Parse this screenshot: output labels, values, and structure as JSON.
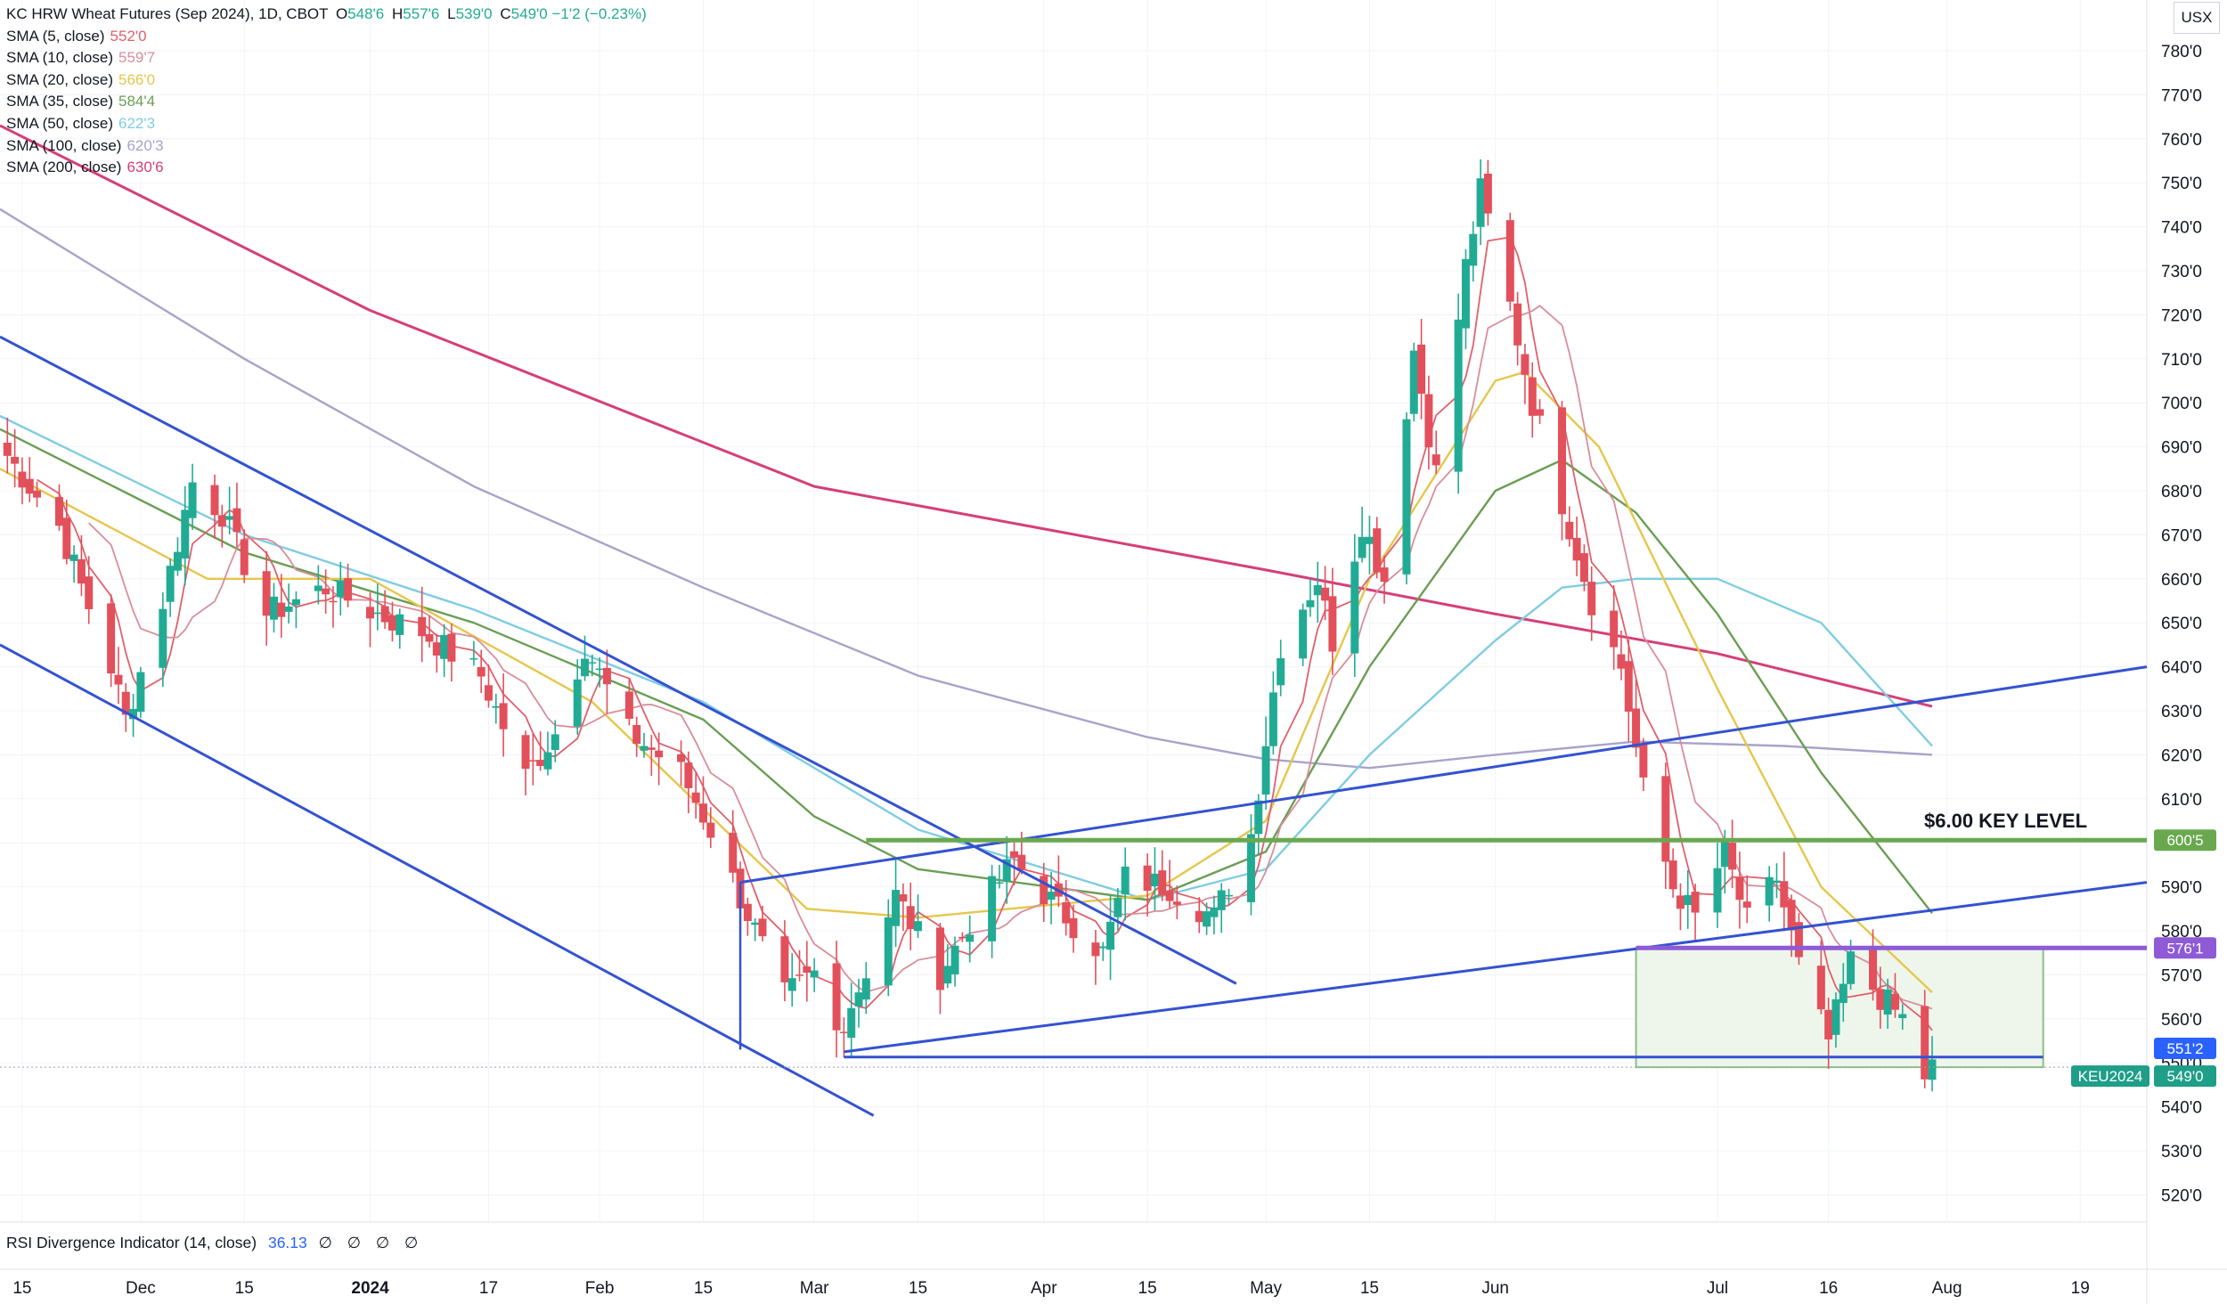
{
  "legend": {
    "title": "KC HRW Wheat Futures (Sep 2024), 1D, CBOT",
    "open_label": "O",
    "open": "548'6",
    "high_label": "H",
    "high": "557'6",
    "low_label": "L",
    "low": "539'0",
    "close_label": "C",
    "close": "549'0",
    "change": "−1'2 (−0.23%)",
    "sma": [
      {
        "label": "SMA (5, close)",
        "value": "552'0",
        "color": "#e0606b"
      },
      {
        "label": "SMA (10, close)",
        "value": "559'7",
        "color": "#d98e9a"
      },
      {
        "label": "SMA (20, close)",
        "value": "566'0",
        "color": "#e6c64c"
      },
      {
        "label": "SMA (35, close)",
        "value": "584'4",
        "color": "#6a9e55"
      },
      {
        "label": "SMA (50, close)",
        "value": "622'3",
        "color": "#7fcde0"
      },
      {
        "label": "SMA (100, close)",
        "value": "620'3",
        "color": "#a9a3c9"
      },
      {
        "label": "SMA (200, close)",
        "value": "630'6",
        "color": "#d63f78"
      }
    ]
  },
  "currency": "USX",
  "rsi": {
    "label": "RSI Divergence Indicator (14, close)",
    "value": "36.13",
    "icons": "∅ ∅ ∅ ∅"
  },
  "annotation": "$6.00 KEY LEVEL",
  "price_tags": [
    {
      "text": "600'5",
      "color": "#6aa84f",
      "price": 600.6
    },
    {
      "text": "576'1",
      "color": "#8e5ad6",
      "price": 576.1
    },
    {
      "text": "551'2",
      "color": "#2962ff",
      "price": 551.25
    },
    {
      "text": "549'0",
      "color": "#1f9e88",
      "price": 549.0
    }
  ],
  "symbol_tag": "KEU2024",
  "colors": {
    "up": "#22ab94",
    "down": "#e2505b",
    "trendline": "#3452d1",
    "key_level": "#6aa84f",
    "support": "#8e5ad6",
    "box_fill": "#eef6ec"
  },
  "chart_data": {
    "type": "candlestick",
    "title": "KC HRW Wheat Futures (Sep 2024), 1D, CBOT",
    "y_unit": "USX",
    "ylim": [
      515,
      785
    ],
    "y_ticks": [
      "780'0",
      "770'0",
      "760'0",
      "750'0",
      "740'0",
      "730'0",
      "720'0",
      "710'0",
      "700'0",
      "690'0",
      "680'0",
      "670'0",
      "660'0",
      "650'0",
      "640'0",
      "630'0",
      "620'0",
      "610'0",
      "600'0",
      "590'0",
      "580'0",
      "570'0",
      "560'0",
      "550'0",
      "540'0",
      "530'0",
      "520'0"
    ],
    "y_tick_values": [
      780,
      770,
      760,
      750,
      740,
      730,
      720,
      710,
      700,
      690,
      680,
      670,
      660,
      650,
      640,
      630,
      620,
      610,
      600,
      590,
      580,
      570,
      560,
      550,
      540,
      530,
      520
    ],
    "x_range": [
      "2023-11-12",
      "2024-08-28"
    ],
    "x_ticks": [
      {
        "date": "2023-11-15",
        "label": "15"
      },
      {
        "date": "2023-12-01",
        "label": "Dec"
      },
      {
        "date": "2023-12-15",
        "label": "15"
      },
      {
        "date": "2024-01-01",
        "label": "2024"
      },
      {
        "date": "2024-01-17",
        "label": "17"
      },
      {
        "date": "2024-02-01",
        "label": "Feb"
      },
      {
        "date": "2024-02-15",
        "label": "15"
      },
      {
        "date": "2024-03-01",
        "label": "Mar"
      },
      {
        "date": "2024-03-15",
        "label": "15"
      },
      {
        "date": "2024-04-01",
        "label": "Apr"
      },
      {
        "date": "2024-04-15",
        "label": "15"
      },
      {
        "date": "2024-05-01",
        "label": "May"
      },
      {
        "date": "2024-05-15",
        "label": "15"
      },
      {
        "date": "2024-06-01",
        "label": "Jun"
      },
      {
        "date": "2024-07-01",
        "label": "Jul"
      },
      {
        "date": "2024-07-16",
        "label": "16"
      },
      {
        "date": "2024-08-01",
        "label": "Aug"
      },
      {
        "date": "2024-08-19",
        "label": "19"
      }
    ],
    "close_anchors": [
      [
        "2023-11-13",
        688
      ],
      [
        "2023-11-20",
        672
      ],
      [
        "2023-11-27",
        640
      ],
      [
        "2023-11-29",
        628
      ],
      [
        "2023-12-04",
        655
      ],
      [
        "2023-12-08",
        682
      ],
      [
        "2023-12-12",
        675
      ],
      [
        "2023-12-18",
        652
      ],
      [
        "2023-12-26",
        658
      ],
      [
        "2024-01-02",
        652
      ],
      [
        "2024-01-08",
        648
      ],
      [
        "2024-01-16",
        638
      ],
      [
        "2024-01-22",
        615
      ],
      [
        "2024-01-26",
        625
      ],
      [
        "2024-01-30",
        645
      ],
      [
        "2024-02-05",
        625
      ],
      [
        "2024-02-12",
        616
      ],
      [
        "2024-02-16",
        603
      ],
      [
        "2024-02-22",
        580
      ],
      [
        "2024-02-26",
        565
      ],
      [
        "2024-03-01",
        570
      ],
      [
        "2024-03-04",
        557
      ],
      [
        "2024-03-07",
        567
      ],
      [
        "2024-03-12",
        588
      ],
      [
        "2024-03-18",
        570
      ],
      [
        "2024-03-22",
        582
      ],
      [
        "2024-03-28",
        596
      ],
      [
        "2024-04-03",
        585
      ],
      [
        "2024-04-09",
        575
      ],
      [
        "2024-04-12",
        592
      ],
      [
        "2024-04-18",
        590
      ],
      [
        "2024-04-24",
        583
      ],
      [
        "2024-04-29",
        602
      ],
      [
        "2024-05-03",
        645
      ],
      [
        "2024-05-08",
        660
      ],
      [
        "2024-05-10",
        646
      ],
      [
        "2024-05-14",
        673
      ],
      [
        "2024-05-17",
        660
      ],
      [
        "2024-05-21",
        712
      ],
      [
        "2024-05-24",
        684
      ],
      [
        "2024-05-28",
        731
      ],
      [
        "2024-05-30",
        748
      ],
      [
        "2024-06-03",
        722
      ],
      [
        "2024-06-06",
        700
      ],
      [
        "2024-06-11",
        672
      ],
      [
        "2024-06-14",
        655
      ],
      [
        "2024-06-18",
        640
      ],
      [
        "2024-06-21",
        612
      ],
      [
        "2024-06-25",
        590
      ],
      [
        "2024-06-28",
        583
      ],
      [
        "2024-07-02",
        598
      ],
      [
        "2024-07-05",
        582
      ],
      [
        "2024-07-09",
        592
      ],
      [
        "2024-07-12",
        572
      ],
      [
        "2024-07-16",
        555
      ],
      [
        "2024-07-19",
        573
      ],
      [
        "2024-07-23",
        565
      ],
      [
        "2024-07-26",
        560
      ],
      [
        "2024-07-29",
        547
      ],
      [
        "2024-07-30",
        549
      ]
    ],
    "sma_lines": [
      {
        "name": "SMA (200, close)",
        "color": "#d63f78",
        "points": [
          [
            "2023-11-12",
            763
          ],
          [
            "2024-01-01",
            721
          ],
          [
            "2024-03-01",
            681
          ],
          [
            "2024-05-01",
            662
          ],
          [
            "2024-06-01",
            652
          ],
          [
            "2024-07-01",
            643
          ],
          [
            "2024-07-30",
            631
          ]
        ]
      },
      {
        "name": "SMA (100, close)",
        "color": "#a9a3c9",
        "points": [
          [
            "2023-11-12",
            744
          ],
          [
            "2023-12-15",
            710
          ],
          [
            "2024-01-15",
            681
          ],
          [
            "2024-02-15",
            658
          ],
          [
            "2024-03-15",
            638
          ],
          [
            "2024-04-15",
            624
          ],
          [
            "2024-05-01",
            619
          ],
          [
            "2024-05-15",
            617
          ],
          [
            "2024-06-01",
            620
          ],
          [
            "2024-06-20",
            623
          ],
          [
            "2024-07-10",
            622
          ],
          [
            "2024-07-30",
            620
          ]
        ]
      },
      {
        "name": "SMA (50, close)",
        "color": "#7fcde0",
        "points": [
          [
            "2023-11-12",
            697
          ],
          [
            "2023-12-15",
            670
          ],
          [
            "2024-01-15",
            653
          ],
          [
            "2024-02-15",
            632
          ],
          [
            "2024-03-15",
            603
          ],
          [
            "2024-04-15",
            587
          ],
          [
            "2024-05-01",
            594
          ],
          [
            "2024-05-15",
            620
          ],
          [
            "2024-06-01",
            646
          ],
          [
            "2024-06-10",
            658
          ],
          [
            "2024-06-20",
            660
          ],
          [
            "2024-07-01",
            660
          ],
          [
            "2024-07-15",
            650
          ],
          [
            "2024-07-30",
            622
          ]
        ]
      },
      {
        "name": "SMA (35, close)",
        "color": "#6a9e55",
        "points": [
          [
            "2023-11-12",
            694
          ],
          [
            "2023-12-15",
            666
          ],
          [
            "2024-01-15",
            650
          ],
          [
            "2024-02-15",
            628
          ],
          [
            "2024-03-01",
            606
          ],
          [
            "2024-03-15",
            594
          ],
          [
            "2024-04-15",
            587
          ],
          [
            "2024-05-01",
            598
          ],
          [
            "2024-05-15",
            640
          ],
          [
            "2024-06-01",
            680
          ],
          [
            "2024-06-10",
            687
          ],
          [
            "2024-06-20",
            675
          ],
          [
            "2024-07-01",
            652
          ],
          [
            "2024-07-15",
            616
          ],
          [
            "2024-07-30",
            584
          ]
        ]
      },
      {
        "name": "SMA (20, close)",
        "color": "#e6c64c",
        "points": [
          [
            "2023-11-12",
            685
          ],
          [
            "2023-12-10",
            660
          ],
          [
            "2024-01-01",
            660
          ],
          [
            "2024-01-31",
            632
          ],
          [
            "2024-02-29",
            585
          ],
          [
            "2024-03-15",
            583
          ],
          [
            "2024-04-15",
            588
          ],
          [
            "2024-05-01",
            605
          ],
          [
            "2024-05-15",
            660
          ],
          [
            "2024-06-01",
            705
          ],
          [
            "2024-06-05",
            707
          ],
          [
            "2024-06-15",
            690
          ],
          [
            "2024-07-01",
            635
          ],
          [
            "2024-07-15",
            590
          ],
          [
            "2024-07-30",
            566
          ]
        ]
      }
    ]
  }
}
